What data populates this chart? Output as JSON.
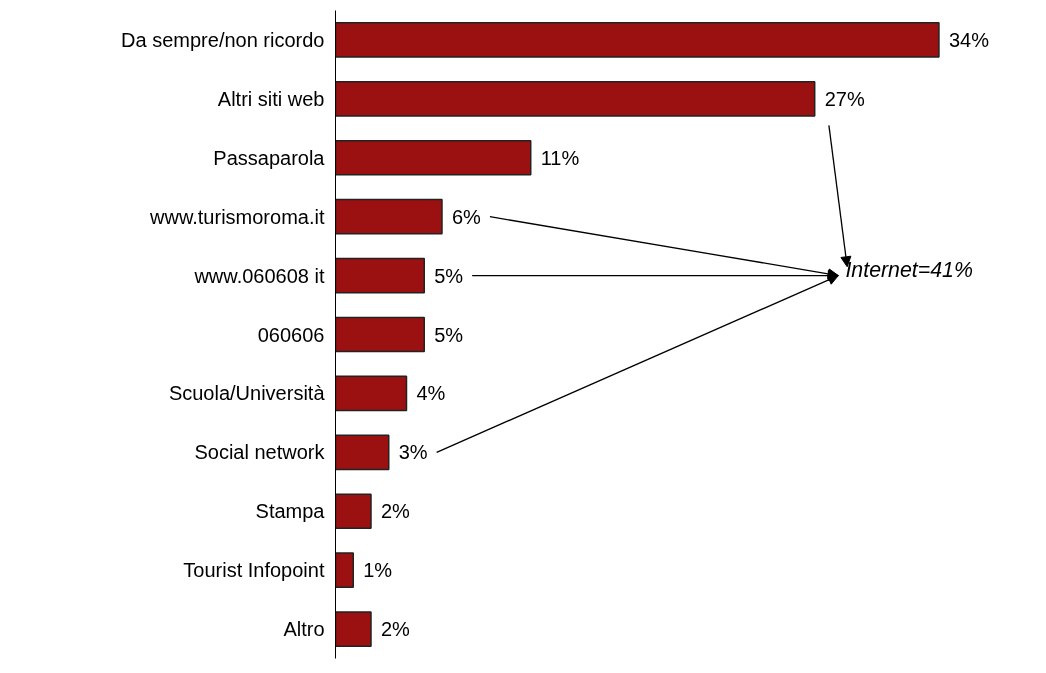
{
  "chart_data": {
    "type": "bar",
    "orientation": "horizontal",
    "categories": [
      "Da sempre/non ricordo",
      "Altri siti web",
      "Passaparola",
      "www.turismoroma.it",
      "www.060608 it",
      "060606",
      "Scuola/Università",
      "Social network",
      "Stampa",
      "Tourist Infopoint",
      "Altro"
    ],
    "values": [
      34,
      27,
      11,
      6,
      5,
      5,
      4,
      3,
      2,
      1,
      2
    ],
    "value_labels": [
      "34%",
      "27%",
      "11%",
      "6%",
      "5%",
      "5%",
      "4%",
      "3%",
      "2%",
      "1%",
      "2%"
    ],
    "color": "#9b1111",
    "annotations": [
      "Internet=41%"
    ],
    "grid": false
  }
}
